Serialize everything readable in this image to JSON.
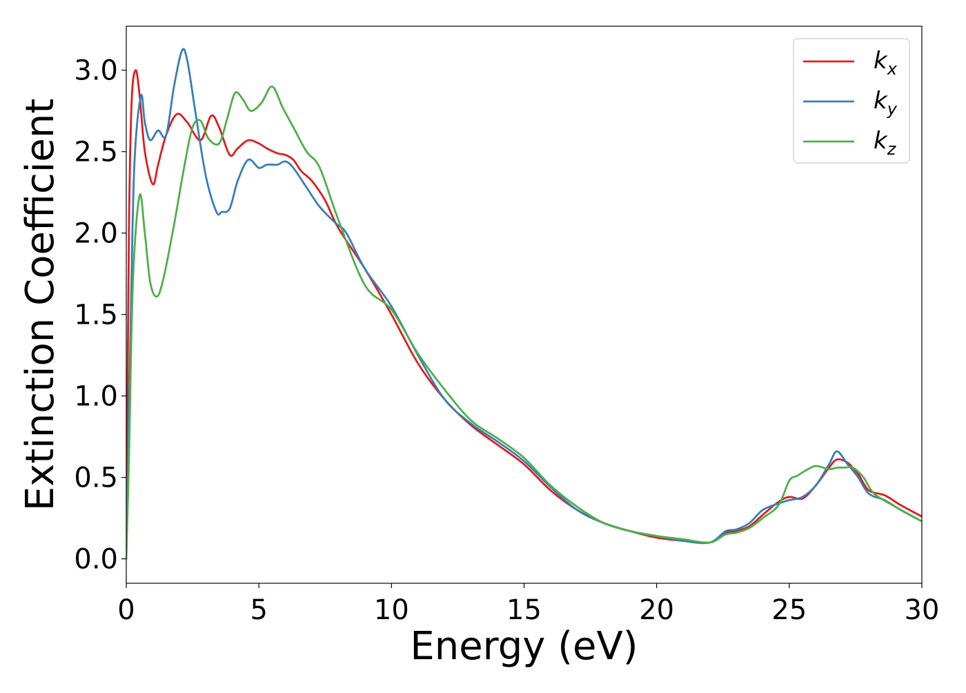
{
  "chart_data": {
    "type": "line",
    "title": "",
    "xlabel": "Energy (eV)",
    "ylabel": "Extinction Coefficient",
    "xlim": [
      0,
      30
    ],
    "ylim": [
      -0.15,
      3.27
    ],
    "xticks": [
      0,
      5,
      10,
      15,
      20,
      25,
      30
    ],
    "xtick_labels": [
      "0",
      "5",
      "10",
      "15",
      "20",
      "25",
      "30"
    ],
    "yticks": [
      0.0,
      0.5,
      1.0,
      1.5,
      2.0,
      2.5,
      3.0
    ],
    "ytick_labels": [
      "0.0",
      "0.5",
      "1.0",
      "1.5",
      "2.0",
      "2.5",
      "3.0"
    ],
    "grid": false,
    "legend_position": "top-right",
    "series": [
      {
        "name": "k",
        "subscript": "x",
        "color": "#e41a1c",
        "x": [
          0,
          0.1,
          0.2,
          0.35,
          0.5,
          0.7,
          1.0,
          1.2,
          1.5,
          1.9,
          2.3,
          2.8,
          3.2,
          3.5,
          3.9,
          4.2,
          4.6,
          5.0,
          5.3,
          5.7,
          6.0,
          6.3,
          6.6,
          7.0,
          7.5,
          8.0,
          9.0,
          10.0,
          11.0,
          12.0,
          13.0,
          14.0,
          15.0,
          16.0,
          17.0,
          18.0,
          19.0,
          20.0,
          21.0,
          22.0,
          22.6,
          23.0,
          23.5,
          24.0,
          24.6,
          25.0,
          25.5,
          26.0,
          26.5,
          26.8,
          27.2,
          27.6,
          28.0,
          28.6,
          29.2,
          30.0
        ],
        "y": [
          0.0,
          2.0,
          2.8,
          3.0,
          2.85,
          2.5,
          2.3,
          2.42,
          2.6,
          2.73,
          2.68,
          2.57,
          2.72,
          2.65,
          2.48,
          2.52,
          2.57,
          2.55,
          2.52,
          2.49,
          2.48,
          2.45,
          2.38,
          2.32,
          2.2,
          2.03,
          1.78,
          1.5,
          1.2,
          0.98,
          0.82,
          0.7,
          0.58,
          0.42,
          0.3,
          0.22,
          0.17,
          0.13,
          0.11,
          0.1,
          0.16,
          0.17,
          0.2,
          0.27,
          0.35,
          0.38,
          0.37,
          0.45,
          0.56,
          0.61,
          0.59,
          0.52,
          0.42,
          0.39,
          0.33,
          0.26
        ]
      },
      {
        "name": "k",
        "subscript": "y",
        "color": "#377eb8",
        "x": [
          0,
          0.15,
          0.3,
          0.55,
          0.7,
          0.9,
          1.2,
          1.5,
          1.8,
          2.1,
          2.3,
          2.6,
          3.0,
          3.4,
          3.6,
          3.9,
          4.2,
          4.6,
          5.0,
          5.3,
          5.7,
          6.0,
          6.3,
          6.8,
          7.3,
          7.9,
          8.3,
          9.0,
          10.0,
          11.0,
          12.0,
          13.0,
          14.0,
          15.0,
          16.0,
          17.0,
          18.0,
          19.0,
          20.0,
          21.0,
          22.0,
          22.6,
          23.0,
          23.5,
          24.0,
          24.6,
          25.0,
          25.5,
          26.0,
          26.5,
          26.8,
          27.2,
          27.6,
          28.0,
          28.6,
          29.2,
          30.0
        ],
        "y": [
          0.0,
          1.3,
          2.4,
          2.84,
          2.68,
          2.57,
          2.63,
          2.6,
          2.9,
          3.12,
          3.06,
          2.75,
          2.35,
          2.13,
          2.13,
          2.15,
          2.32,
          2.45,
          2.4,
          2.42,
          2.42,
          2.44,
          2.4,
          2.28,
          2.16,
          2.06,
          2.0,
          1.78,
          1.55,
          1.25,
          0.98,
          0.83,
          0.72,
          0.6,
          0.44,
          0.3,
          0.22,
          0.17,
          0.14,
          0.11,
          0.1,
          0.17,
          0.18,
          0.22,
          0.3,
          0.34,
          0.36,
          0.38,
          0.45,
          0.58,
          0.66,
          0.58,
          0.5,
          0.4,
          0.36,
          0.3,
          0.23
        ]
      },
      {
        "name": "k",
        "subscript": "z",
        "color": "#4daf4a",
        "x": [
          0,
          0.1,
          0.25,
          0.5,
          0.7,
          0.9,
          1.15,
          1.4,
          1.8,
          2.2,
          2.5,
          2.8,
          3.1,
          3.5,
          3.8,
          4.1,
          4.4,
          4.7,
          5.1,
          5.5,
          5.9,
          6.3,
          6.8,
          7.3,
          8.0,
          9.0,
          10.0,
          11.0,
          12.0,
          13.0,
          14.0,
          15.0,
          16.0,
          17.0,
          18.0,
          19.0,
          20.0,
          21.0,
          22.0,
          22.6,
          23.0,
          23.5,
          24.0,
          24.6,
          25.0,
          25.3,
          25.6,
          26.0,
          26.5,
          26.8,
          27.1,
          27.4,
          27.8,
          28.2,
          29.0,
          30.0
        ],
        "y": [
          0.0,
          0.6,
          1.7,
          2.23,
          2.0,
          1.7,
          1.61,
          1.72,
          2.05,
          2.42,
          2.65,
          2.69,
          2.58,
          2.55,
          2.7,
          2.86,
          2.82,
          2.75,
          2.8,
          2.9,
          2.77,
          2.65,
          2.5,
          2.4,
          2.08,
          1.68,
          1.53,
          1.26,
          1.04,
          0.85,
          0.74,
          0.62,
          0.45,
          0.32,
          0.22,
          0.17,
          0.14,
          0.12,
          0.1,
          0.15,
          0.16,
          0.19,
          0.25,
          0.33,
          0.48,
          0.51,
          0.54,
          0.57,
          0.55,
          0.56,
          0.56,
          0.56,
          0.5,
          0.4,
          0.32,
          0.23
        ]
      }
    ]
  }
}
